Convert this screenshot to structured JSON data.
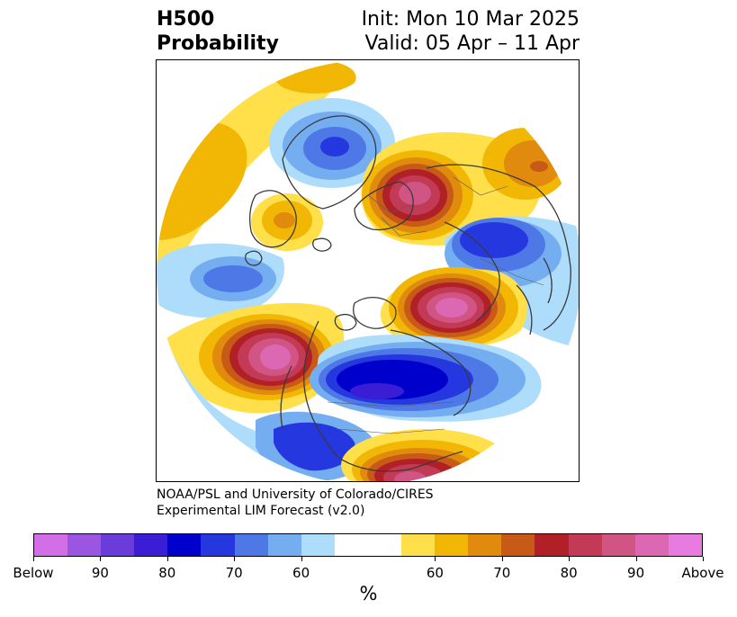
{
  "title": {
    "left_line1": "H500",
    "left_line2": "Probability",
    "right_line1": "Init: Mon 10 Mar 2025",
    "right_line2": "Valid: 05 Apr – 11 Apr"
  },
  "credit": {
    "line1": "NOAA/PSL and University of Colorado/CIRES",
    "line2": "Experimental LIM Forecast (v2.0)"
  },
  "colorbar": {
    "unit": "%",
    "colors": [
      "#d36fe6",
      "#9c55e0",
      "#6b3cd9",
      "#3a1dd4",
      "#0000cc",
      "#2537de",
      "#4d78e6",
      "#74aef0",
      "#aedcfb",
      "#ffffff",
      "#ffffff",
      "#ffe04a",
      "#f2b705",
      "#e08b0e",
      "#c75a17",
      "#b02026",
      "#c23a55",
      "#d05585",
      "#dc67b3",
      "#e87be0"
    ],
    "tick_labels": [
      "Below",
      "90",
      "80",
      "70",
      "60",
      "60",
      "70",
      "80",
      "90",
      "Above"
    ]
  },
  "map": {
    "projection": "north-polar-stereographic",
    "variable": "H500 probability",
    "anomaly_centers": [
      {
        "region": "Greenland / Arctic Canada",
        "sign": "below",
        "level": "70-80"
      },
      {
        "region": "Eastern Europe / Scandinavia",
        "sign": "above",
        "level": "90-Above"
      },
      {
        "region": "Western Siberia",
        "sign": "above",
        "level": "60-70"
      },
      {
        "region": "Eastern Siberia / Okhotsk",
        "sign": "below",
        "level": "80-90"
      },
      {
        "region": "Bering Sea / North Pacific",
        "sign": "above",
        "level": "90-Above"
      },
      {
        "region": "Gulf of Alaska / NE Pacific",
        "sign": "above",
        "level": "90-Above"
      },
      {
        "region": "Central Canada / Hudson Bay",
        "sign": "below",
        "level": "90-Below"
      },
      {
        "region": "Southern United States",
        "sign": "above",
        "level": "90"
      },
      {
        "region": "Mid-Atlantic Ocean",
        "sign": "below",
        "level": "70"
      },
      {
        "region": "Western Europe / Mediterranean",
        "sign": "above",
        "level": "70"
      }
    ]
  }
}
